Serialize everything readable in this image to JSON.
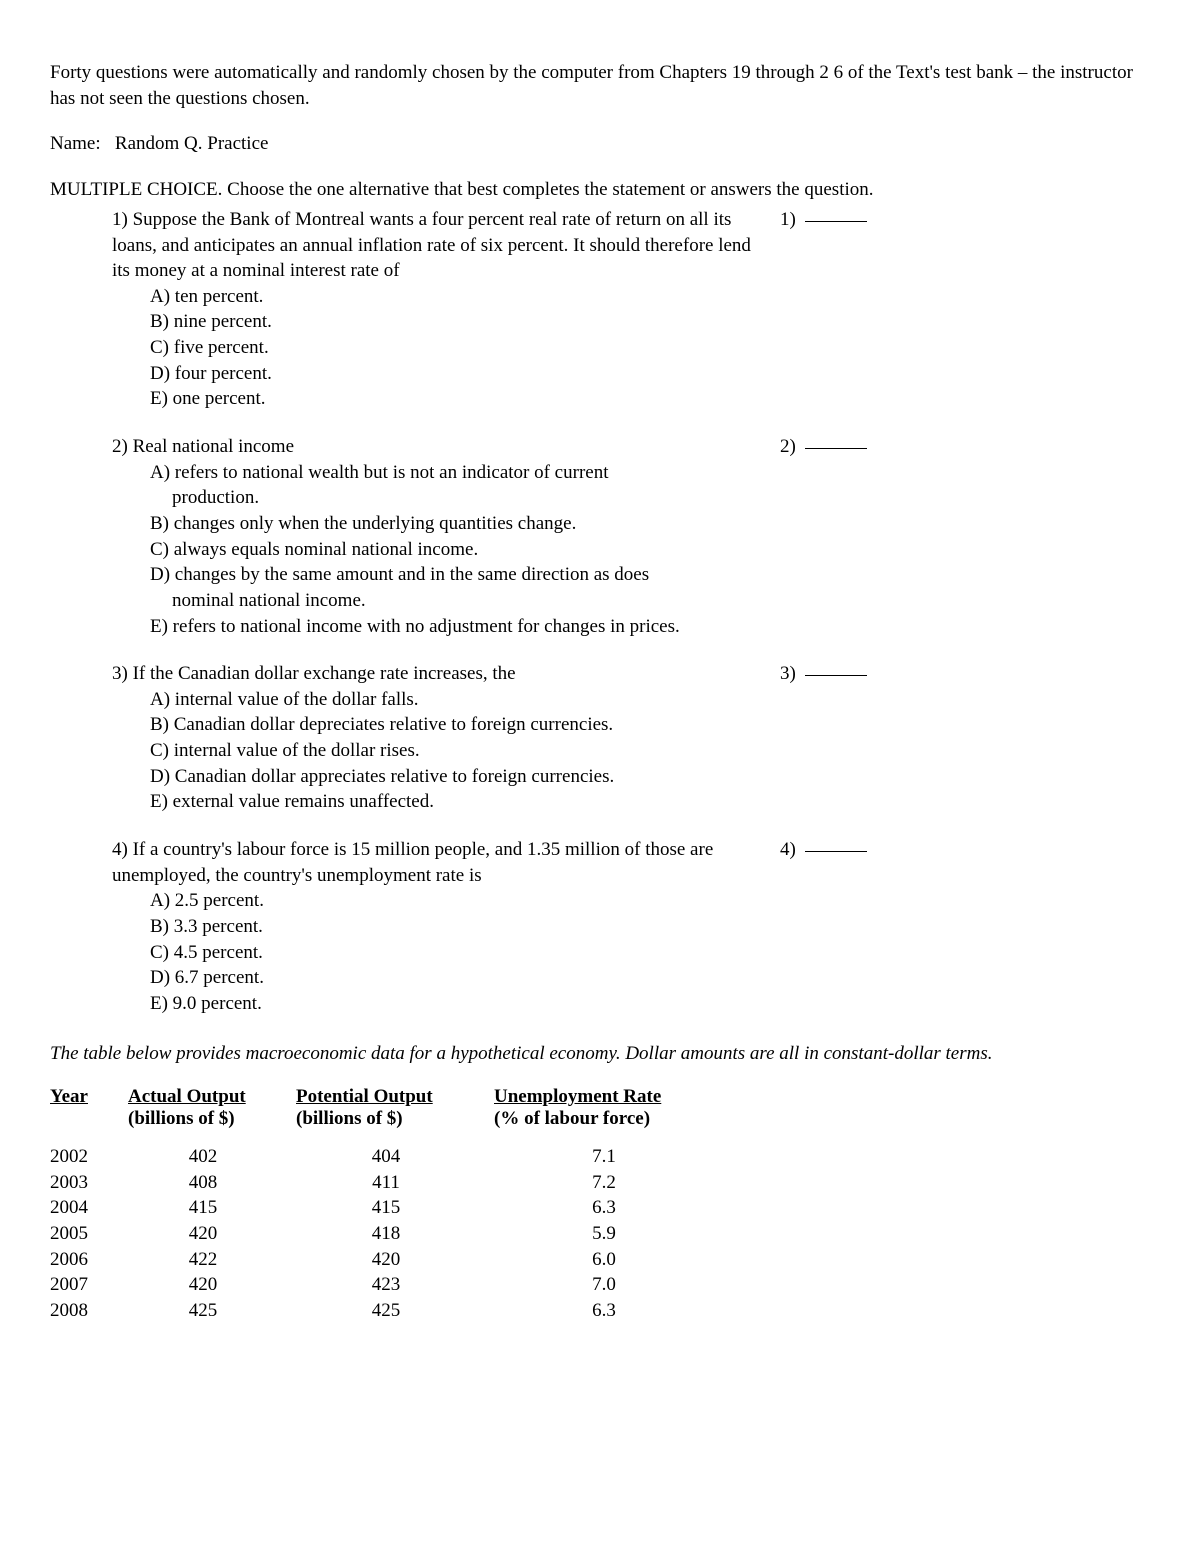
{
  "intro": "Forty questions were automatically and randomly chosen by the computer from Chapters 19 through 2 6 of the Text's  test bank – the instructor has not seen the questions chosen.",
  "name_label": "Name:",
  "name_value": "Random Q. Practice",
  "section_instructions": "MULTIPLE CHOICE.  Choose the one alternative that best completes the statement or answers the question.",
  "questions": [
    {
      "num": "1)",
      "text": "Suppose the Bank of Montreal wants a four percent real rate of return on all its loans, and anticipates an annual inflation rate of six percent. It should therefore lend its money at a nominal interest rate of",
      "blank": "1)",
      "choices": [
        "A) ten percent.",
        "B) nine percent.",
        "C) five percent.",
        "D) four percent.",
        "E) one percent."
      ]
    },
    {
      "num": "2)",
      "text": "Real national income",
      "blank": "2)",
      "choices": [
        "A) refers to national wealth but is not an indicator of current\n    production.",
        "B) changes only when the underlying quantities change.",
        "C) always equals nominal national income.",
        "D) changes by the same amount and in the same direction as does\n    nominal national income.",
        "E) refers to national income with no adjustment for changes in prices."
      ]
    },
    {
      "num": "3)",
      "text": "If the Canadian dollar exchange rate increases, the",
      "blank": "3)",
      "choices": [
        "A) internal value of the dollar falls.",
        "B) Canadian dollar depreciates relative to foreign currencies.",
        "C) internal value of the dollar rises.",
        "D) Canadian dollar appreciates relative to foreign currencies.",
        "E) external value remains unaffected."
      ]
    },
    {
      "num": "4)",
      "text": "If a country's labour force is 15 million people, and 1.35 million of those are unemployed, the country's unemployment rate is",
      "blank": "4)",
      "choices": [
        "A) 2.5 percent.",
        "B) 3.3 percent.",
        "C) 4.5 percent.",
        "D) 6.7 percent.",
        "E) 9.0 percent."
      ]
    }
  ],
  "table_note": "The table below provides macroeconomic data for a hypothetical economy. Dollar amounts are all in constant-dollar terms.",
  "table": {
    "columns": [
      {
        "head": "Year",
        "sub": ""
      },
      {
        "head": "Actual Output",
        "sub": "(billions of $)"
      },
      {
        "head": "Potential Output",
        "sub": "(billions of $)"
      },
      {
        "head": "Unemployment Rate",
        "sub": "(% of labour force)"
      }
    ],
    "rows": [
      [
        "2002",
        "402",
        "404",
        "7.1"
      ],
      [
        "2003",
        "408",
        "411",
        "7.2"
      ],
      [
        "2004",
        "415",
        "415",
        "6.3"
      ],
      [
        "2005",
        "420",
        "418",
        "5.9"
      ],
      [
        "2006",
        "422",
        "420",
        "6.0"
      ],
      [
        "2007",
        "420",
        "423",
        "7.0"
      ],
      [
        "2008",
        "425",
        "425",
        "6.3"
      ]
    ]
  }
}
